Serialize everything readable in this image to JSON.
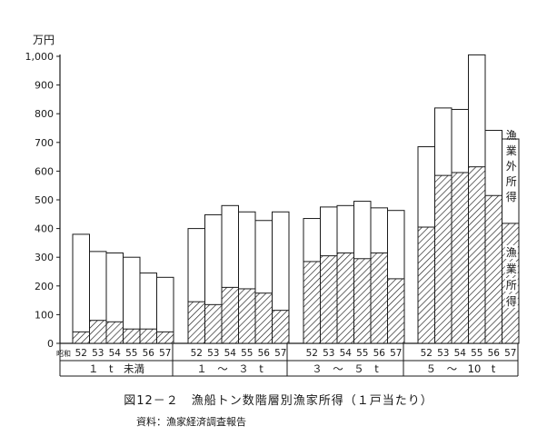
{
  "chart_data": {
    "type": "bar",
    "stacked": true,
    "title": "図12－２　漁船トン数階層別漁家所得（１戸当たり）",
    "source": "資料：漁家経済調査報告",
    "unit_label": "万円",
    "ylim": [
      0,
      1000
    ],
    "yticks": [
      0,
      100,
      200,
      300,
      400,
      500,
      600,
      700,
      800,
      900,
      1000
    ],
    "ytick_labels": [
      "0",
      "100",
      "200",
      "300",
      "400",
      "500",
      "600",
      "700",
      "800",
      "900",
      "1,000"
    ],
    "era_label": "昭和",
    "groups": [
      {
        "label": "１　t　未満",
        "years": [
          "52",
          "53",
          "54",
          "55",
          "56",
          "57"
        ],
        "fishing_income": [
          40,
          80,
          75,
          50,
          50,
          40
        ],
        "total_income": [
          380,
          320,
          315,
          300,
          245,
          230
        ]
      },
      {
        "label": "１　～　３　t",
        "years": [
          "52",
          "53",
          "54",
          "55",
          "56",
          "57"
        ],
        "fishing_income": [
          145,
          135,
          195,
          190,
          175,
          115
        ],
        "total_income": [
          400,
          448,
          480,
          458,
          428,
          458
        ]
      },
      {
        "label": "３　～　５　t",
        "years": [
          "52",
          "53",
          "54",
          "55",
          "56",
          "57"
        ],
        "fishing_income": [
          285,
          305,
          315,
          295,
          315,
          225
        ],
        "total_income": [
          435,
          475,
          480,
          495,
          472,
          463
        ]
      },
      {
        "label": "５　～　10　t",
        "years": [
          "52",
          "53",
          "54",
          "55",
          "56",
          "57"
        ],
        "fishing_income": [
          405,
          585,
          595,
          615,
          515,
          418
        ],
        "total_income": [
          685,
          820,
          815,
          1005,
          742,
          712
        ]
      }
    ],
    "series": [
      {
        "name": "漁業所得",
        "pattern": "hatched"
      },
      {
        "name": "漁業外所得",
        "pattern": "blank"
      }
    ],
    "series_labels": {
      "non_fishing": [
        "漁",
        "業",
        "外",
        "所",
        "得"
      ],
      "fishing": [
        "漁",
        "業",
        "所",
        "得"
      ]
    },
    "colors": {
      "ink": "#1a1a1a",
      "background": "#ffffff"
    }
  }
}
